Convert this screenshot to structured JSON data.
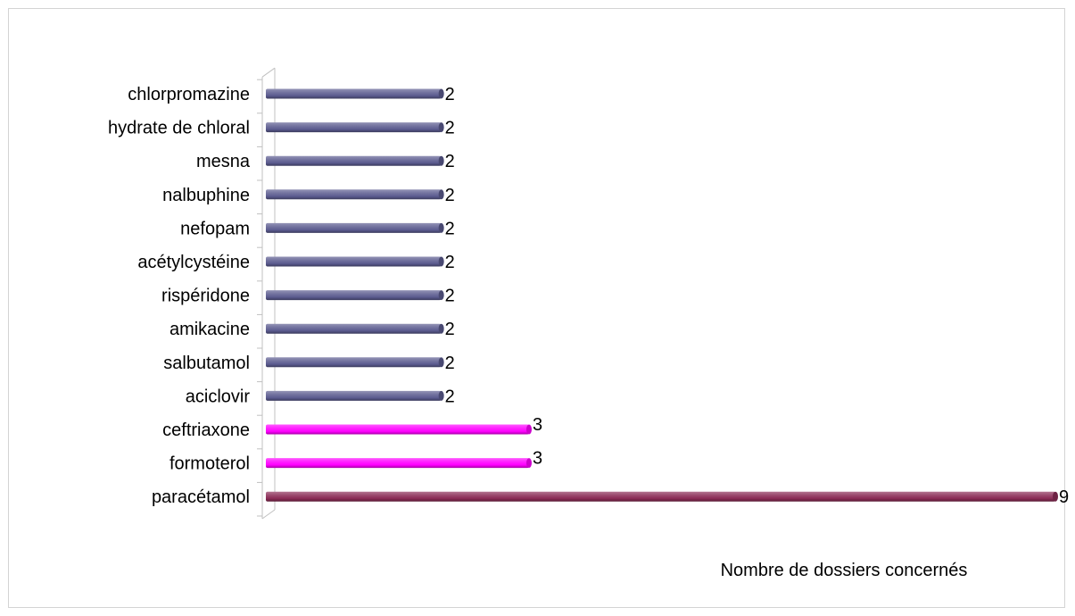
{
  "chart_data": {
    "type": "bar",
    "orientation": "horizontal",
    "categories": [
      "chlorpromazine",
      "hydrate de chloral",
      "mesna",
      "nalbuphine",
      "nefopam",
      "acétylcystéine",
      "rispéridone",
      "amikacine",
      "salbutamol",
      "aciclovir",
      "ceftriaxone",
      "formoterol",
      "paracétamol"
    ],
    "values": [
      2,
      2,
      2,
      2,
      2,
      2,
      2,
      2,
      2,
      2,
      3,
      3,
      9
    ],
    "data_labels": [
      "2",
      "2",
      "2",
      "2",
      "2",
      "2",
      "2",
      "2",
      "2",
      "2",
      "3",
      "3",
      "9"
    ],
    "bar_colors": [
      "#5b5b8f",
      "#5b5b8f",
      "#5b5b8f",
      "#5b5b8f",
      "#5b5b8f",
      "#5b5b8f",
      "#5b5b8f",
      "#5b5b8f",
      "#5b5b8f",
      "#5b5b8f",
      "#ff00ff",
      "#ff00ff",
      "#8a2b55"
    ],
    "xlabel": "Nombre de dossiers concernés",
    "ylabel": "",
    "title": "",
    "xlim": [
      0,
      9
    ],
    "grid": false,
    "legend": false
  }
}
